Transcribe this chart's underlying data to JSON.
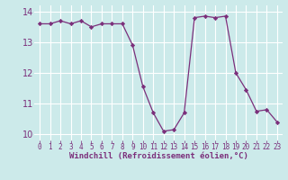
{
  "x": [
    0,
    1,
    2,
    3,
    4,
    5,
    6,
    7,
    8,
    9,
    10,
    11,
    12,
    13,
    14,
    15,
    16,
    17,
    18,
    19,
    20,
    21,
    22,
    23
  ],
  "y": [
    13.6,
    13.6,
    13.7,
    13.6,
    13.7,
    13.5,
    13.6,
    13.6,
    13.6,
    12.9,
    11.55,
    10.7,
    10.1,
    10.15,
    10.7,
    13.8,
    13.85,
    13.8,
    13.85,
    12.0,
    11.45,
    10.75,
    10.8,
    10.4
  ],
  "line_color": "#7b2f7b",
  "marker": "D",
  "marker_size": 2.2,
  "bg_color": "#cceaea",
  "grid_color": "#ffffff",
  "xlabel": "Windchill (Refroidissement éolien,°C)",
  "xlabel_color": "#7b2f7b",
  "tick_color": "#7b2f7b",
  "ylim": [
    9.8,
    14.2
  ],
  "xlim": [
    -0.5,
    23.5
  ],
  "yticks": [
    10,
    11,
    12,
    13,
    14
  ],
  "xticks": [
    0,
    1,
    2,
    3,
    4,
    5,
    6,
    7,
    8,
    9,
    10,
    11,
    12,
    13,
    14,
    15,
    16,
    17,
    18,
    19,
    20,
    21,
    22,
    23
  ],
  "xlabel_fontsize": 6.5,
  "tick_fontsize": 5.5
}
